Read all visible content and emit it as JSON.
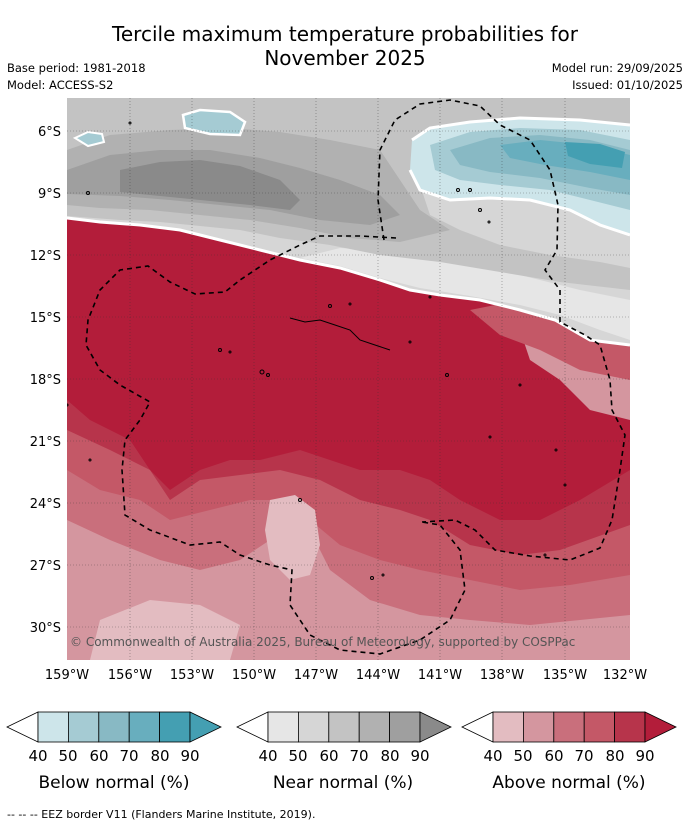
{
  "title_line1": "Tercile maximum temperature probabilities for",
  "title_line2": "November 2025",
  "meta": {
    "base_period": "Base period: 1981-2018",
    "model": "Model: ACCESS-S2",
    "model_run": "Model run: 29/09/2025",
    "issued": "Issued: 01/10/2025"
  },
  "map": {
    "lon_labels": [
      "159°W",
      "156°W",
      "153°W",
      "150°W",
      "147°W",
      "144°W",
      "141°W",
      "138°W",
      "135°W",
      "132°W"
    ],
    "lat_labels": [
      "6°S",
      "9°S",
      "12°S",
      "15°S",
      "18°S",
      "21°S",
      "24°S",
      "27°S",
      "30°S"
    ],
    "copyright": "© Commonwealth of Australia 2025, Bureau of Meteorology, supported by COSPPac"
  },
  "colors": {
    "below": [
      "#cde5ea",
      "#a5cbd3",
      "#88b9c4",
      "#68aebe",
      "#449fb2"
    ],
    "near": [
      "#e6e6e6",
      "#d6d6d6",
      "#c3c3c3",
      "#b1b1b1",
      "#9f9f9f",
      "#8a8a8a"
    ],
    "above": [
      "#e3bcc1",
      "#d4969f",
      "#c96f7c",
      "#c45867",
      "#b7344b",
      "#b31d3a"
    ]
  },
  "legends": [
    {
      "title": "Below normal (%)",
      "ticks": [
        "40",
        "50",
        "60",
        "70",
        "80",
        "90"
      ]
    },
    {
      "title": "Near normal (%)",
      "ticks": [
        "40",
        "50",
        "60",
        "70",
        "80",
        "90"
      ]
    },
    {
      "title": "Above normal (%)",
      "ticks": [
        "40",
        "50",
        "60",
        "70",
        "80",
        "90"
      ]
    }
  ],
  "footnote": "--  --  -- EEZ border V11 (Flanders Marine Institute, 2019)."
}
